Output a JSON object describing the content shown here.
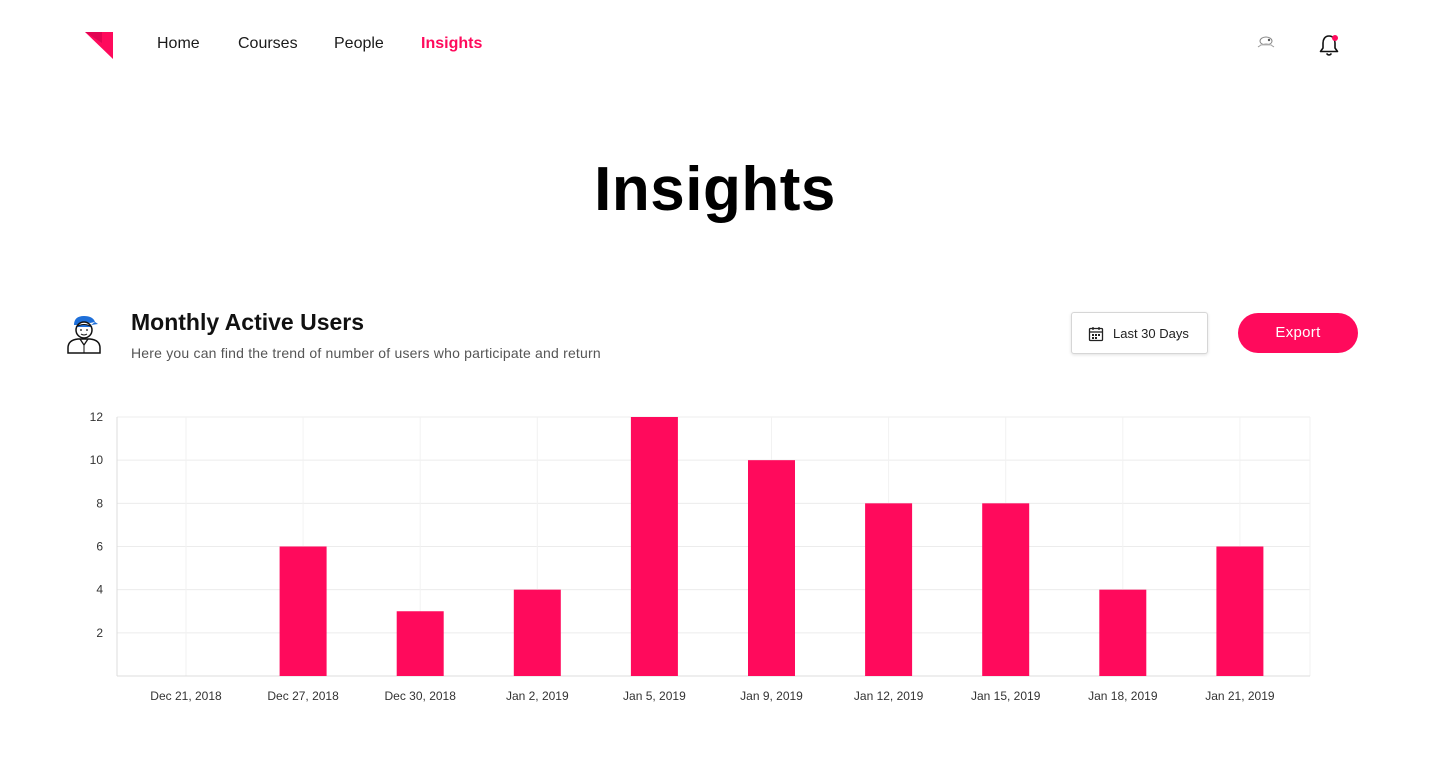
{
  "nav": {
    "items": [
      {
        "label": "Home",
        "active": false
      },
      {
        "label": "Courses",
        "active": false
      },
      {
        "label": "People",
        "active": false
      },
      {
        "label": "Insights",
        "active": true
      }
    ],
    "logo_icon": "brand-flag-icon",
    "avatar_icon": "user-avatar-icon",
    "bell_icon": "notification-bell-icon",
    "notification_dot": true
  },
  "page": {
    "title": "Insights"
  },
  "card": {
    "icon": "user-person-icon",
    "title": "Monthly Active Users",
    "subtitle": "Here you can find the trend of number of users who participate and return",
    "date_range_label": "Last 30 Days",
    "export_label": "Export"
  },
  "colors": {
    "accent": "#ff0a5c",
    "grid": "#ececec",
    "text": "#111111"
  },
  "chart_data": {
    "type": "bar",
    "categories": [
      "Dec 21, 2018",
      "Dec 27, 2018",
      "Dec 30, 2018",
      "Jan 2, 2019",
      "Jan 5, 2019",
      "Jan 9, 2019",
      "Jan 12, 2019",
      "Jan 15, 2019",
      "Jan 18, 2019",
      "Jan 21, 2019"
    ],
    "values": [
      0,
      6,
      3,
      4,
      12,
      10,
      8,
      8,
      4,
      6
    ],
    "yticks": [
      2,
      4,
      6,
      8,
      10,
      12
    ],
    "ylim": [
      0,
      12
    ],
    "grid": true,
    "bar_color": "#ff0a5c"
  }
}
